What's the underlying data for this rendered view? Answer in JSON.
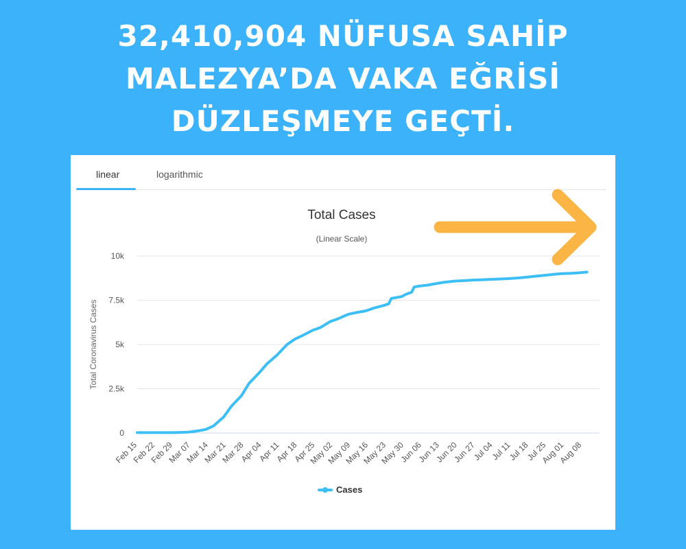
{
  "headline": {
    "line1": "32,410,904 NÜFUSA SAHİP",
    "line2": "MALEZYA’DA VAKA EĞRİSİ",
    "line3": "DÜZLEŞMEYE GEÇTİ."
  },
  "tabs": [
    {
      "label": "linear",
      "active": true
    },
    {
      "label": "logarithmic",
      "active": false
    }
  ],
  "colors": {
    "background": "#3cb2fb",
    "line": "#3dbff5",
    "arrow": "#fbb545",
    "tab_underline": "#3cb2fb"
  },
  "icons": {
    "annotation": "arrow-right-icon"
  },
  "chart_data": {
    "type": "line",
    "title": "Total Cases",
    "subtitle": "(Linear Scale)",
    "ylabel": "Total Coronavirus Cases",
    "xlabel": "",
    "ylim": [
      0,
      10000
    ],
    "yticks": [
      0,
      2500,
      5000,
      7500,
      10000
    ],
    "ytick_labels": [
      "0",
      "2.5k",
      "5k",
      "7.5k",
      "10k"
    ],
    "x_tick_labels": [
      "Feb 15",
      "Feb 22",
      "Feb 29",
      "Mar 07",
      "Mar 14",
      "Mar 21",
      "Mar 28",
      "Apr 04",
      "Apr 11",
      "Apr 18",
      "Apr 25",
      "May 02",
      "May 09",
      "May 16",
      "May 23",
      "May 30",
      "Jun 06",
      "Jun 13",
      "Jun 20",
      "Jun 27",
      "Jul 04",
      "Jul 11",
      "Jul 18",
      "Jul 25",
      "Aug 01",
      "Aug 08"
    ],
    "grid": true,
    "legend": "bottom-center",
    "series": [
      {
        "name": "Cases",
        "x": [
          "Feb 15",
          "Feb 22",
          "Feb 29",
          "Mar 07",
          "Mar 10",
          "Mar 14",
          "Mar 17",
          "Mar 21",
          "Mar 24",
          "Mar 28",
          "Mar 31",
          "Apr 04",
          "Apr 07",
          "Apr 11",
          "Apr 15",
          "Apr 18",
          "Apr 21",
          "Apr 25",
          "Apr 28",
          "May 02",
          "May 05",
          "May 09",
          "May 12",
          "May 16",
          "May 19",
          "May 23",
          "May 25",
          "May 26",
          "May 30",
          "Jun 01",
          "Jun 03",
          "Jun 04",
          "Jun 06",
          "Jun 09",
          "Jun 13",
          "Jun 16",
          "Jun 20",
          "Jun 24",
          "Jun 27",
          "Jul 01",
          "Jul 04",
          "Jul 08",
          "Jul 11",
          "Jul 15",
          "Jul 18",
          "Jul 22",
          "Jul 25",
          "Jul 29",
          "Aug 01",
          "Aug 05",
          "Aug 08",
          "Aug 11"
        ],
        "values": [
          22,
          22,
          25,
          50,
          100,
          200,
          400,
          900,
          1500,
          2100,
          2800,
          3400,
          3900,
          4400,
          5000,
          5300,
          5500,
          5800,
          5950,
          6300,
          6450,
          6700,
          6800,
          6900,
          7050,
          7200,
          7300,
          7600,
          7700,
          7850,
          7950,
          8250,
          8300,
          8350,
          8450,
          8520,
          8580,
          8610,
          8640,
          8660,
          8680,
          8700,
          8720,
          8760,
          8800,
          8860,
          8900,
          8960,
          9000,
          9020,
          9050,
          9090
        ]
      }
    ]
  }
}
